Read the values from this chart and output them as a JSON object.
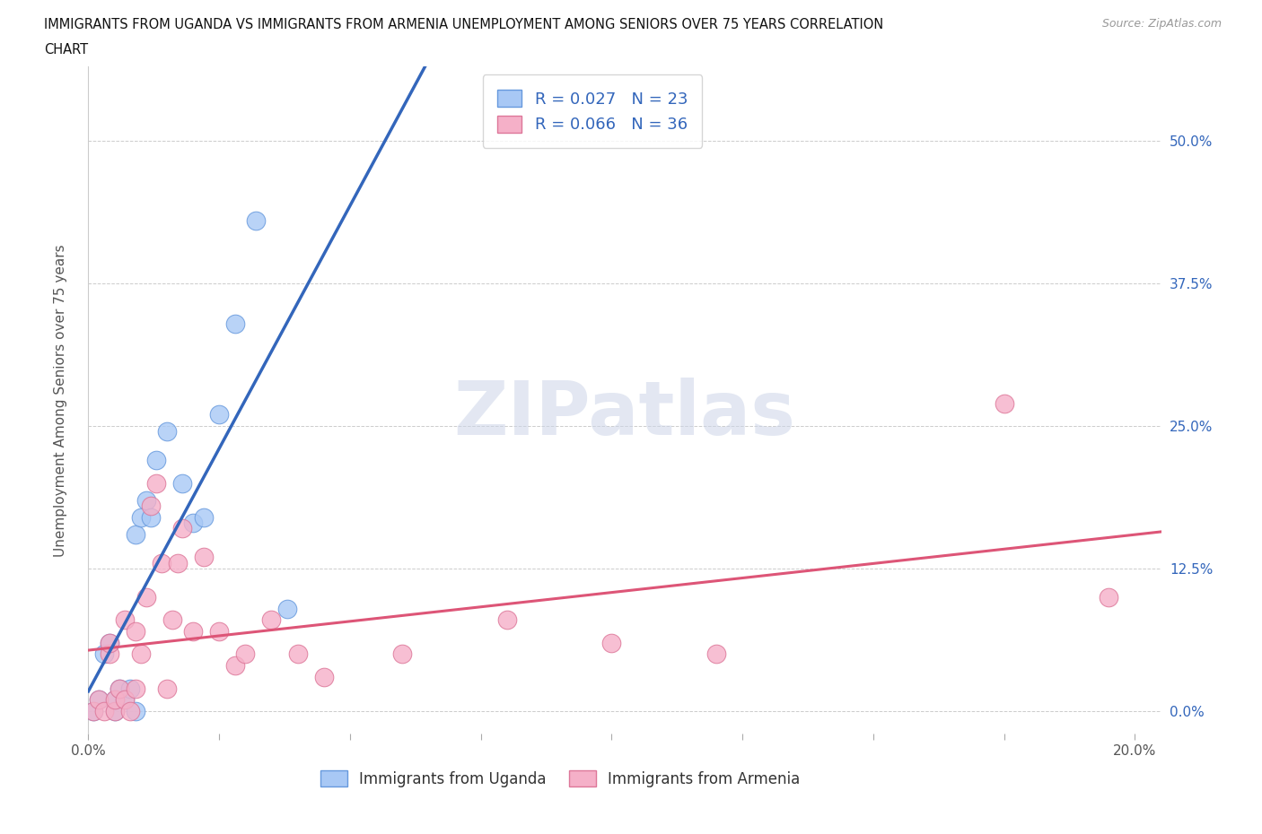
{
  "title_line1": "IMMIGRANTS FROM UGANDA VS IMMIGRANTS FROM ARMENIA UNEMPLOYMENT AMONG SENIORS OVER 75 YEARS CORRELATION",
  "title_line2": "CHART",
  "source": "Source: ZipAtlas.com",
  "ylabel": "Unemployment Among Seniors over 75 years",
  "xlim": [
    0.0,
    0.205
  ],
  "ylim": [
    -0.02,
    0.565
  ],
  "yticks": [
    0.0,
    0.125,
    0.25,
    0.375,
    0.5
  ],
  "ytick_labels": [
    "0.0%",
    "12.5%",
    "25.0%",
    "37.5%",
    "50.0%"
  ],
  "xticks": [
    0.0,
    0.025,
    0.05,
    0.075,
    0.1,
    0.125,
    0.15,
    0.175,
    0.2
  ],
  "xtick_labels_show": [
    "0.0%",
    "",
    "",
    "",
    "",
    "",
    "",
    "",
    "20.0%"
  ],
  "legend_r_uganda": "R = 0.027",
  "legend_n_uganda": "N = 23",
  "legend_r_armenia": "R = 0.066",
  "legend_n_armenia": "N = 36",
  "color_uganda_fill": "#a8c8f5",
  "color_uganda_edge": "#6699dd",
  "color_armenia_fill": "#f5b0c8",
  "color_armenia_edge": "#dd7799",
  "color_uganda_line": "#3366bb",
  "color_armenia_line": "#dd5577",
  "color_uganda_dashed": "#88aadd",
  "watermark_text": "ZIPatlas",
  "watermark_color": "#ccd5e8",
  "background_color": "#ffffff",
  "grid_color": "#cccccc",
  "uganda_x": [
    0.001,
    0.002,
    0.003,
    0.004,
    0.005,
    0.005,
    0.006,
    0.007,
    0.008,
    0.009,
    0.009,
    0.01,
    0.011,
    0.012,
    0.013,
    0.015,
    0.018,
    0.02,
    0.022,
    0.025,
    0.028,
    0.032,
    0.038
  ],
  "uganda_y": [
    0.0,
    0.01,
    0.05,
    0.06,
    0.0,
    0.01,
    0.02,
    0.01,
    0.02,
    0.0,
    0.155,
    0.17,
    0.185,
    0.17,
    0.22,
    0.245,
    0.2,
    0.165,
    0.17,
    0.26,
    0.34,
    0.43,
    0.09
  ],
  "armenia_x": [
    0.001,
    0.002,
    0.003,
    0.004,
    0.004,
    0.005,
    0.005,
    0.006,
    0.007,
    0.007,
    0.008,
    0.009,
    0.009,
    0.01,
    0.011,
    0.012,
    0.013,
    0.014,
    0.015,
    0.016,
    0.017,
    0.018,
    0.02,
    0.022,
    0.025,
    0.028,
    0.03,
    0.035,
    0.04,
    0.045,
    0.06,
    0.08,
    0.1,
    0.12,
    0.175,
    0.195
  ],
  "armenia_y": [
    0.0,
    0.01,
    0.0,
    0.05,
    0.06,
    0.0,
    0.01,
    0.02,
    0.01,
    0.08,
    0.0,
    0.02,
    0.07,
    0.05,
    0.1,
    0.18,
    0.2,
    0.13,
    0.02,
    0.08,
    0.13,
    0.16,
    0.07,
    0.135,
    0.07,
    0.04,
    0.05,
    0.08,
    0.05,
    0.03,
    0.05,
    0.08,
    0.06,
    0.05,
    0.27,
    0.1
  ],
  "uganda_line_solid_end": 0.08,
  "marker_size": 220
}
